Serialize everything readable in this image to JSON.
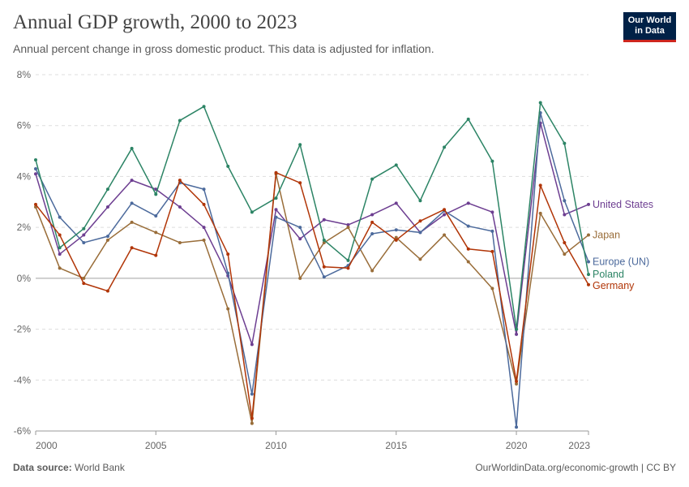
{
  "header": {
    "title": "Annual GDP growth, 2000 to 2023",
    "subtitle": "Annual percent change in gross domestic product. This data is adjusted for inflation.",
    "logo_line1": "Our World",
    "logo_line2": "in Data"
  },
  "footer": {
    "source_label": "Data source:",
    "source_value": "World Bank",
    "credit": "OurWorldinData.org/economic-growth | CC BY"
  },
  "chart_data": {
    "type": "line",
    "title": "Annual GDP growth, 2000 to 2023",
    "xlabel": "",
    "ylabel": "",
    "ylim": [
      -6,
      8
    ],
    "xlim": [
      2000,
      2023
    ],
    "grid": true,
    "y_ticks": [
      8,
      6,
      4,
      2,
      0,
      -2,
      -4,
      -6
    ],
    "y_tick_labels": [
      "8%",
      "6%",
      "4%",
      "2%",
      "0%",
      "-2%",
      "-4%",
      "-6%"
    ],
    "x_ticks": [
      2000,
      2005,
      2010,
      2015,
      2020,
      2023
    ],
    "x_tick_labels": [
      "2000",
      "2005",
      "2010",
      "2015",
      "2020",
      "2023"
    ],
    "x": [
      2000,
      2001,
      2002,
      2003,
      2004,
      2005,
      2006,
      2007,
      2008,
      2009,
      2010,
      2011,
      2012,
      2013,
      2014,
      2015,
      2016,
      2017,
      2018,
      2019,
      2020,
      2021,
      2022,
      2023
    ],
    "series": [
      {
        "name": "United States",
        "color": "#6d3e91",
        "label_offset": 0,
        "values": [
          4.1,
          0.95,
          1.7,
          2.8,
          3.85,
          3.5,
          2.8,
          2.0,
          0.1,
          -2.6,
          2.7,
          1.55,
          2.3,
          2.1,
          2.5,
          2.95,
          1.8,
          2.5,
          2.95,
          2.6,
          -2.2,
          6.1,
          2.5,
          2.9
        ]
      },
      {
        "name": "Japan",
        "color": "#996d39",
        "label_offset": 0,
        "values": [
          2.8,
          0.4,
          0.0,
          1.5,
          2.2,
          1.8,
          1.4,
          1.5,
          -1.2,
          -5.7,
          4.1,
          0.0,
          1.4,
          2.0,
          0.3,
          1.6,
          0.75,
          1.7,
          0.65,
          -0.4,
          -4.15,
          2.55,
          0.95,
          1.7
        ]
      },
      {
        "name": "Europe (UN)",
        "color": "#4c6a9c",
        "label_offset": 0,
        "values": [
          4.3,
          2.4,
          1.4,
          1.65,
          2.95,
          2.45,
          3.75,
          3.5,
          0.2,
          -4.55,
          2.4,
          2.0,
          0.05,
          0.5,
          1.75,
          1.9,
          1.8,
          2.65,
          2.05,
          1.85,
          -5.85,
          6.5,
          3.05,
          0.65
        ]
      },
      {
        "name": "Poland",
        "color": "#2c8465",
        "label_offset": 0,
        "values": [
          4.65,
          1.2,
          1.95,
          3.5,
          5.1,
          3.3,
          6.2,
          6.75,
          4.4,
          2.6,
          3.15,
          5.25,
          1.5,
          0.7,
          3.9,
          4.45,
          3.05,
          5.15,
          6.25,
          4.6,
          -2.0,
          6.9,
          5.3,
          0.15
        ]
      },
      {
        "name": "Germany",
        "color": "#b13507",
        "label_offset": 0,
        "values": [
          2.9,
          1.7,
          -0.2,
          -0.5,
          1.2,
          0.9,
          3.85,
          2.9,
          0.95,
          -5.5,
          4.15,
          3.75,
          0.45,
          0.4,
          2.2,
          1.5,
          2.25,
          2.7,
          1.15,
          1.05,
          -4.05,
          3.65,
          1.4,
          -0.25
        ]
      }
    ]
  }
}
